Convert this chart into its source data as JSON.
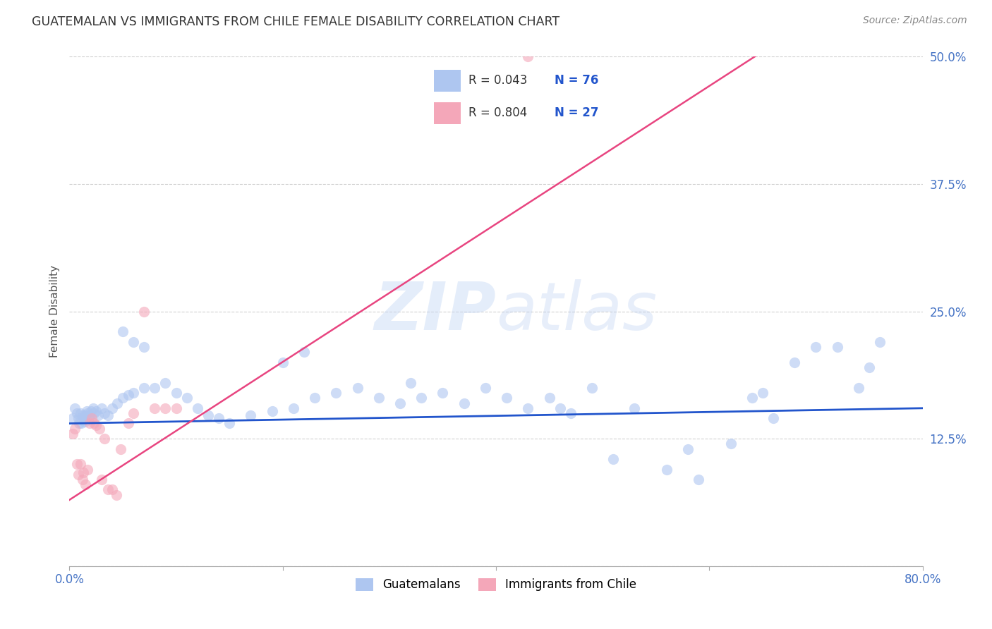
{
  "title": "GUATEMALAN VS IMMIGRANTS FROM CHILE FEMALE DISABILITY CORRELATION CHART",
  "source": "Source: ZipAtlas.com",
  "ylabel": "Female Disability",
  "xlim": [
    0.0,
    0.8
  ],
  "ylim": [
    0.0,
    0.5
  ],
  "xticks": [
    0.0,
    0.2,
    0.4,
    0.6,
    0.8
  ],
  "xticklabels": [
    "0.0%",
    "",
    "",
    "",
    "80.0%"
  ],
  "yticks": [
    0.0,
    0.125,
    0.25,
    0.375,
    0.5
  ],
  "yticklabels": [
    "",
    "12.5%",
    "25.0%",
    "37.5%",
    "50.0%"
  ],
  "blue_x": [
    0.003,
    0.005,
    0.007,
    0.008,
    0.009,
    0.01,
    0.011,
    0.012,
    0.013,
    0.014,
    0.015,
    0.016,
    0.017,
    0.018,
    0.019,
    0.02,
    0.022,
    0.023,
    0.025,
    0.027,
    0.03,
    0.033,
    0.036,
    0.04,
    0.045,
    0.05,
    0.055,
    0.06,
    0.07,
    0.08,
    0.09,
    0.1,
    0.11,
    0.12,
    0.13,
    0.14,
    0.15,
    0.17,
    0.19,
    0.21,
    0.23,
    0.25,
    0.27,
    0.29,
    0.31,
    0.33,
    0.35,
    0.37,
    0.39,
    0.41,
    0.43,
    0.45,
    0.47,
    0.49,
    0.51,
    0.53,
    0.56,
    0.59,
    0.62,
    0.64,
    0.66,
    0.68,
    0.7,
    0.72,
    0.74,
    0.76,
    0.05,
    0.06,
    0.07,
    0.2,
    0.22,
    0.32,
    0.46,
    0.58,
    0.65,
    0.75
  ],
  "blue_y": [
    0.145,
    0.155,
    0.15,
    0.145,
    0.14,
    0.15,
    0.14,
    0.148,
    0.145,
    0.142,
    0.148,
    0.152,
    0.15,
    0.145,
    0.148,
    0.152,
    0.155,
    0.15,
    0.152,
    0.148,
    0.155,
    0.15,
    0.148,
    0.155,
    0.16,
    0.165,
    0.168,
    0.17,
    0.175,
    0.175,
    0.18,
    0.17,
    0.165,
    0.155,
    0.148,
    0.145,
    0.14,
    0.148,
    0.152,
    0.155,
    0.165,
    0.17,
    0.175,
    0.165,
    0.16,
    0.165,
    0.17,
    0.16,
    0.175,
    0.165,
    0.155,
    0.165,
    0.15,
    0.175,
    0.105,
    0.155,
    0.095,
    0.085,
    0.12,
    0.165,
    0.145,
    0.2,
    0.215,
    0.215,
    0.175,
    0.22,
    0.23,
    0.22,
    0.215,
    0.2,
    0.21,
    0.18,
    0.155,
    0.115,
    0.17,
    0.195
  ],
  "pink_x": [
    0.003,
    0.005,
    0.007,
    0.008,
    0.01,
    0.012,
    0.013,
    0.015,
    0.017,
    0.019,
    0.021,
    0.023,
    0.025,
    0.028,
    0.03,
    0.033,
    0.036,
    0.04,
    0.044,
    0.048,
    0.055,
    0.06,
    0.07,
    0.08,
    0.09,
    0.1,
    0.43
  ],
  "pink_y": [
    0.13,
    0.135,
    0.1,
    0.09,
    0.1,
    0.085,
    0.092,
    0.08,
    0.095,
    0.14,
    0.145,
    0.14,
    0.138,
    0.135,
    0.085,
    0.125,
    0.075,
    0.075,
    0.07,
    0.115,
    0.14,
    0.15,
    0.25,
    0.155,
    0.155,
    0.155,
    0.5
  ],
  "blue_line_start_x": 0.0,
  "blue_line_end_x": 0.8,
  "blue_line_start_y": 0.14,
  "blue_line_end_y": 0.155,
  "pink_line_start_x": 0.0,
  "pink_line_end_x": 0.65,
  "pink_line_start_y": 0.065,
  "pink_line_end_y": 0.505,
  "blue_color": "#aec6f0",
  "pink_color": "#f4a7b9",
  "blue_line_color": "#2255cc",
  "pink_line_color": "#e84580",
  "scatter_size": 120,
  "scatter_alpha": 0.6,
  "R_blue": 0.043,
  "N_blue": 76,
  "R_pink": 0.804,
  "N_pink": 27,
  "watermark_zip": "ZIP",
  "watermark_atlas": "atlas",
  "grid_color": "#cccccc",
  "background_color": "#ffffff",
  "legend_label_blue": "Guatemalans",
  "legend_label_pink": "Immigrants from Chile"
}
